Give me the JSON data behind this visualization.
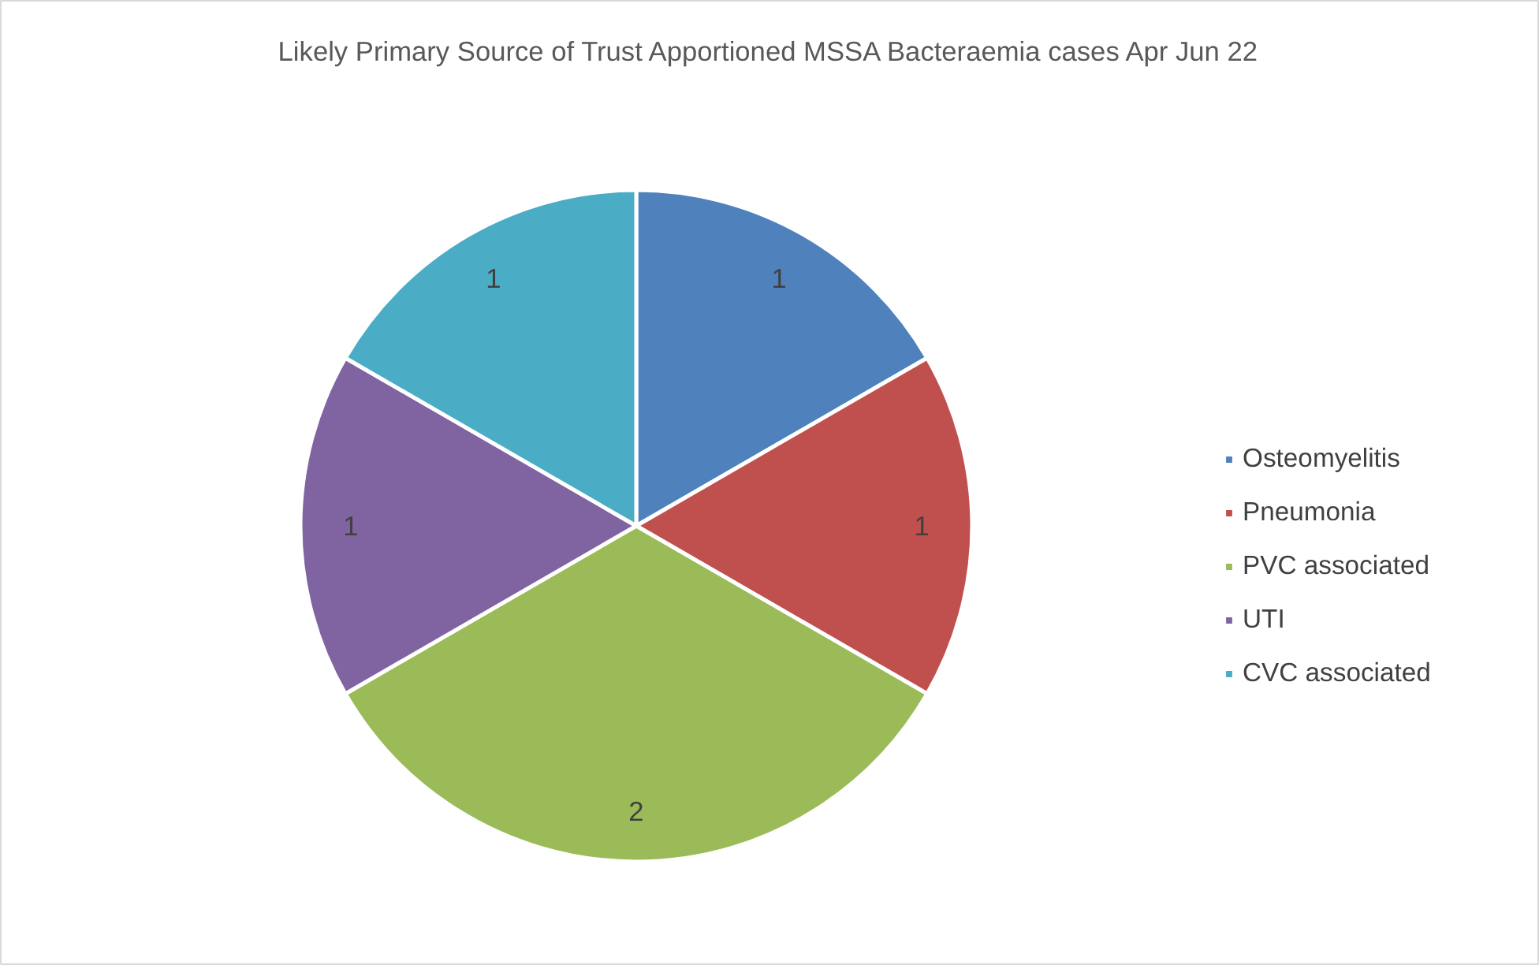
{
  "chart_data": {
    "type": "pie",
    "title": "Likely Primary Source of Trust Apportioned MSSA Bacteraemia cases Apr Jun 22",
    "categories": [
      "Osteomyelitis",
      "Pneumonia",
      "PVC associated",
      "UTI",
      "CVC associated"
    ],
    "values": [
      1,
      1,
      2,
      1,
      1
    ],
    "colors": [
      "#4f81bd",
      "#c0504d",
      "#9bbb59",
      "#8064a2",
      "#4bacc6"
    ],
    "data_labels": true,
    "legend": "right"
  }
}
